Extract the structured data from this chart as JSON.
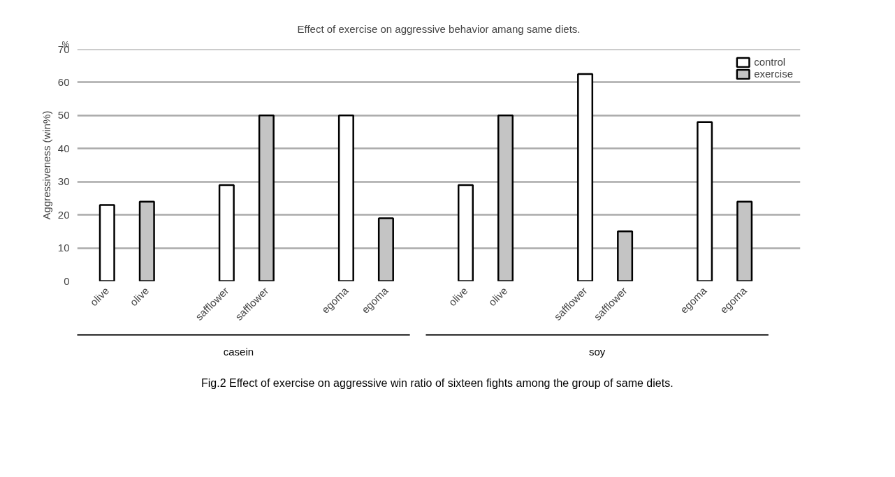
{
  "chart_data": {
    "type": "bar",
    "title": "Effect of exercise on aggressive behavior amang same diets.",
    "ylabel": "Aggressiveness (win%)",
    "categories": [
      "olive",
      "olive",
      "safflower",
      "safflower",
      "egoma",
      "egoma",
      "olive",
      "olive",
      "safflower",
      "safflower",
      "egoma",
      "egoma"
    ],
    "series": [
      {
        "name": "control",
        "color": "#ffffff",
        "values": [
          23,
          null,
          29,
          null,
          50,
          null,
          29,
          null,
          62.5,
          null,
          48,
          null
        ]
      },
      {
        "name": "exercise",
        "color": "#c4c4c4",
        "values": [
          null,
          24,
          null,
          50,
          null,
          19,
          null,
          50,
          null,
          15,
          null,
          24
        ]
      }
    ],
    "ylim": [
      0,
      70
    ],
    "yticks": [
      0,
      10,
      20,
      30,
      40,
      50,
      60,
      70
    ],
    "grid": "y",
    "legend": "top right",
    "annotations": [
      "%",
      "casein",
      "soy",
      "Fig.2  Effect of exercise on aggressive win ratio of sixteen fights among the group of same diets."
    ]
  }
}
